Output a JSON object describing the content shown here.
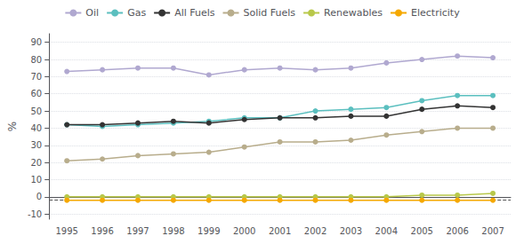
{
  "chart_data": {
    "type": "line",
    "ylabel": "%",
    "categories": [
      "1995",
      "1996",
      "1997",
      "1998",
      "1999",
      "2000",
      "2001",
      "2002",
      "2003",
      "2004",
      "2005",
      "2006",
      "2007"
    ],
    "series": [
      {
        "name": "Oil",
        "color": "#b0a8d0",
        "values": [
          73,
          74,
          75,
          75,
          71,
          74,
          75,
          74,
          75,
          78,
          80,
          82,
          81
        ]
      },
      {
        "name": "Gas",
        "color": "#5bbfbf",
        "values": [
          42,
          41,
          42,
          43,
          44,
          46,
          46,
          50,
          51,
          52,
          56,
          59,
          59
        ]
      },
      {
        "name": "All Fuels",
        "color": "#333333",
        "values": [
          42,
          42,
          43,
          44,
          43,
          45,
          46,
          46,
          47,
          47,
          51,
          53,
          52
        ]
      },
      {
        "name": "Solid Fuels",
        "color": "#b8ad8c",
        "values": [
          21,
          22,
          24,
          25,
          26,
          29,
          32,
          32,
          33,
          36,
          38,
          40,
          40
        ]
      },
      {
        "name": "Renewables",
        "color": "#b8c84a",
        "values": [
          0,
          0,
          0,
          0,
          0,
          0,
          0,
          0,
          0,
          0,
          1,
          1,
          2
        ]
      },
      {
        "name": "Electricity",
        "color": "#f5a800",
        "values": [
          -2,
          -2,
          -2,
          -2,
          -2,
          -2,
          -2,
          -2,
          -2,
          -2,
          -2,
          -2,
          -2
        ]
      }
    ],
    "reference_line": -2,
    "ylim": [
      -13,
      95
    ],
    "yticks": [
      -10,
      0,
      10,
      20,
      30,
      40,
      50,
      60,
      70,
      80,
      90
    ],
    "grid": true,
    "legend": "top",
    "marker": "circle"
  }
}
